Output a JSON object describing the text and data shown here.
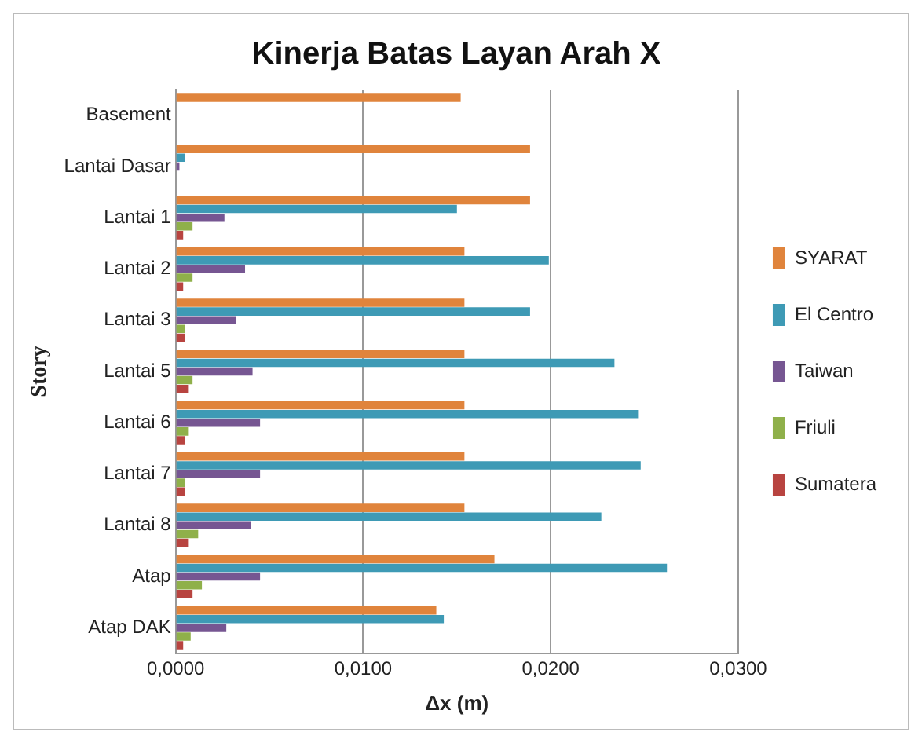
{
  "chart_data": {
    "type": "bar",
    "orientation": "horizontal",
    "title": "Kinerja Batas Layan Arah X",
    "xlabel": "Δx (m)",
    "ylabel": "Story",
    "categories": [
      "Basement",
      "Lantai Dasar",
      "Lantai 1",
      "Lantai 2",
      "Lantai 3",
      "Lantai 5",
      "Lantai 6",
      "Lantai 7",
      "Lantai 8",
      "Atap",
      "Atap DAK"
    ],
    "series": [
      {
        "name": "SYARAT",
        "color": "#e0843c",
        "values": [
          0.0152,
          0.0189,
          0.0189,
          0.0154,
          0.0154,
          0.0154,
          0.0154,
          0.0154,
          0.0154,
          0.017,
          0.0139
        ]
      },
      {
        "name": "El Centro",
        "color": "#3e9ab5",
        "values": [
          0,
          0.0005,
          0.015,
          0.0199,
          0.0189,
          0.0234,
          0.0247,
          0.0248,
          0.0227,
          0.0262,
          0.0143
        ]
      },
      {
        "name": "Taiwan",
        "color": "#765692",
        "values": [
          0,
          0.0002,
          0.0026,
          0.0037,
          0.0032,
          0.0041,
          0.0045,
          0.0045,
          0.004,
          0.0045,
          0.0027
        ]
      },
      {
        "name": "Friuli",
        "color": "#8fb04a",
        "values": [
          0,
          0,
          0.0009,
          0.0009,
          0.0005,
          0.0009,
          0.0007,
          0.0005,
          0.0012,
          0.0014,
          0.0008
        ]
      },
      {
        "name": "Sumatera",
        "color": "#b84440",
        "values": [
          0,
          0,
          0.0004,
          0.0004,
          0.0005,
          0.0007,
          0.0005,
          0.0005,
          0.0007,
          0.0009,
          0.0004
        ]
      }
    ],
    "xlim": [
      0,
      0.03
    ],
    "xticks": [
      {
        "value": 0,
        "label": "0,0000"
      },
      {
        "value": 0.01,
        "label": "0,0100"
      },
      {
        "value": 0.02,
        "label": "0,0200"
      },
      {
        "value": 0.03,
        "label": "0,0300"
      }
    ],
    "grid": "x",
    "legend": "right"
  }
}
